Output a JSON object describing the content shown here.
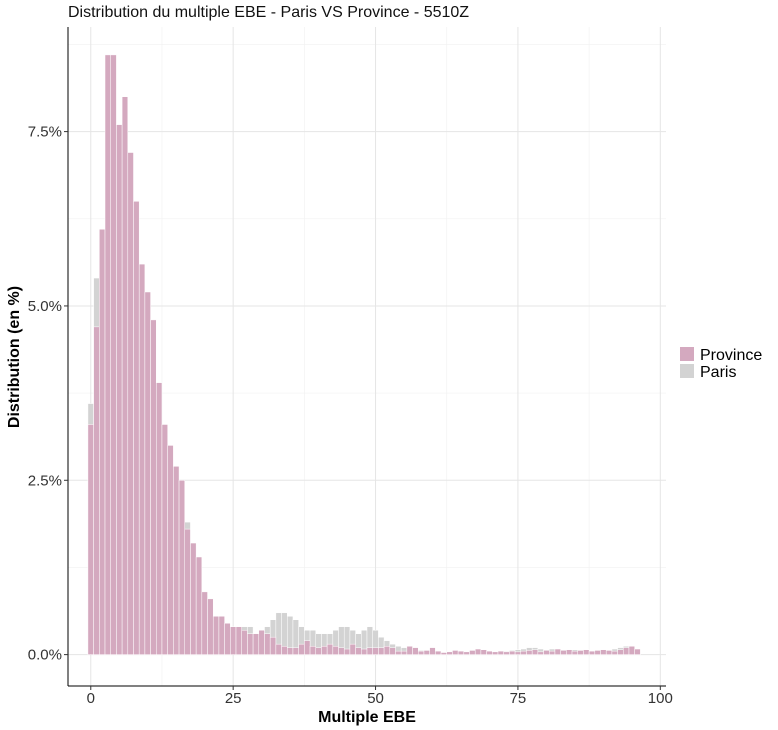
{
  "chart_data": {
    "type": "bar",
    "title": "Distribution du multiple EBE - Paris VS Province - 5510Z",
    "xlabel": "Multiple EBE",
    "ylabel": "Distribution (en %)",
    "xlim": [
      -4,
      101
    ],
    "ylim": [
      -0.45,
      9.0
    ],
    "x_ticks": [
      0,
      25,
      50,
      75,
      100
    ],
    "x_tick_labels": [
      "0",
      "25",
      "50",
      "75",
      "100"
    ],
    "y_ticks": [
      0,
      2.5,
      5.0,
      7.5
    ],
    "y_tick_labels": [
      "0.0%",
      "2.5%",
      "5.0%",
      "7.5%"
    ],
    "grid": true,
    "legend_position": "right",
    "colors": {
      "Province": "#d4a9bf",
      "Paris": "#d3d3d3"
    },
    "bin_width": 1,
    "x": [
      0,
      1,
      2,
      3,
      4,
      5,
      6,
      7,
      8,
      9,
      10,
      11,
      12,
      13,
      14,
      15,
      16,
      17,
      18,
      19,
      20,
      21,
      22,
      23,
      24,
      25,
      26,
      27,
      28,
      29,
      30,
      31,
      32,
      33,
      34,
      35,
      36,
      37,
      38,
      39,
      40,
      41,
      42,
      43,
      44,
      45,
      46,
      47,
      48,
      49,
      50,
      51,
      52,
      53,
      54,
      55,
      56,
      57,
      58,
      59,
      60,
      61,
      62,
      63,
      64,
      65,
      66,
      67,
      68,
      69,
      70,
      71,
      72,
      73,
      74,
      75,
      76,
      77,
      78,
      79,
      80,
      81,
      82,
      83,
      84,
      85,
      86,
      87,
      88,
      89,
      90,
      91,
      92,
      93,
      94,
      95,
      96,
      97
    ],
    "series": [
      {
        "name": "Paris",
        "values": [
          3.6,
          5.4,
          6.0,
          6.2,
          6.2,
          5.8,
          5.2,
          4.8,
          4.2,
          3.6,
          3.2,
          3.0,
          2.9,
          2.8,
          2.7,
          2.5,
          2.3,
          1.9,
          1.5,
          1.0,
          0.6,
          0.3,
          0.2,
          0.2,
          0.3,
          0.3,
          0.3,
          0.4,
          0.4,
          0.3,
          0.3,
          0.4,
          0.5,
          0.6,
          0.6,
          0.55,
          0.5,
          0.4,
          0.35,
          0.35,
          0.3,
          0.3,
          0.3,
          0.35,
          0.4,
          0.4,
          0.35,
          0.3,
          0.35,
          0.4,
          0.35,
          0.25,
          0.2,
          0.15,
          0.12,
          0.1,
          0.1,
          0.08,
          0.06,
          0.05,
          0.05,
          0.04,
          0.03,
          0.03,
          0.02,
          0.02,
          0.03,
          0.04,
          0.05,
          0.04,
          0.03,
          0.04,
          0.05,
          0.05,
          0.06,
          0.07,
          0.08,
          0.1,
          0.1,
          0.08,
          0.07,
          0.08,
          0.08,
          0.07,
          0.06,
          0.07,
          0.06,
          0.05,
          0.05,
          0.06,
          0.06,
          0.06,
          0.08,
          0.1,
          0.12,
          0.1,
          0.08,
          0.0
        ]
      },
      {
        "name": "Province",
        "values": [
          3.3,
          4.7,
          6.1,
          8.6,
          8.6,
          7.6,
          8.0,
          7.2,
          6.5,
          5.6,
          5.2,
          4.8,
          3.9,
          3.3,
          3.0,
          2.7,
          2.5,
          1.8,
          1.6,
          1.4,
          0.9,
          0.8,
          0.55,
          0.55,
          0.45,
          0.4,
          0.4,
          0.35,
          0.3,
          0.3,
          0.35,
          0.3,
          0.25,
          0.15,
          0.12,
          0.1,
          0.1,
          0.15,
          0.2,
          0.12,
          0.1,
          0.12,
          0.15,
          0.12,
          0.1,
          0.08,
          0.15,
          0.1,
          0.08,
          0.1,
          0.1,
          0.1,
          0.12,
          0.1,
          0.05,
          0.05,
          0.12,
          0.1,
          0.05,
          0.06,
          0.1,
          0.05,
          0.03,
          0.04,
          0.06,
          0.05,
          0.04,
          0.06,
          0.08,
          0.07,
          0.05,
          0.04,
          0.05,
          0.04,
          0.05,
          0.04,
          0.05,
          0.06,
          0.07,
          0.04,
          0.06,
          0.05,
          0.08,
          0.06,
          0.07,
          0.05,
          0.06,
          0.07,
          0.05,
          0.06,
          0.07,
          0.06,
          0.05,
          0.07,
          0.1,
          0.12,
          0.08,
          0.0
        ]
      }
    ]
  }
}
